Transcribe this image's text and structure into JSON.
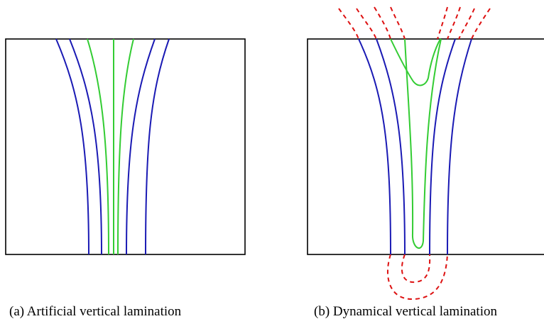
{
  "panels": [
    {
      "caption": "(a) Artificial vertical lamination"
    },
    {
      "caption": "(b) Dynamical vertical lamination"
    }
  ],
  "colors": {
    "frame": "#000000",
    "blue_curves": "#1a1ab4",
    "green_curves": "#33cc33",
    "red_dashed": "#dd1111"
  }
}
